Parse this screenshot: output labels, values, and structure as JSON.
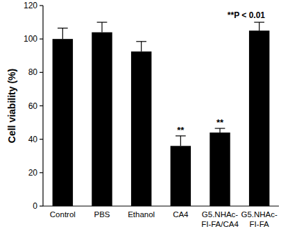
{
  "chart_data": {
    "type": "bar",
    "y_label": "Cell viability (%)",
    "categories": [
      "Control",
      "PBS",
      "Ethanol",
      "CA4",
      "G5.NHAc-\nFI-FA/CA4",
      "G5.NHAc-\nFI-FA"
    ],
    "values": [
      100,
      104,
      92.5,
      36,
      44,
      105
    ],
    "errors": [
      6.5,
      6,
      6,
      6,
      2.5,
      5
    ],
    "color": "#000000",
    "ylim": [
      0,
      120
    ],
    "yticks": [
      0,
      20,
      40,
      60,
      80,
      100,
      120
    ],
    "grid": false,
    "annotations": [
      {
        "text": "**P < 0.01"
      },
      {
        "text": "**",
        "category": "CA4"
      },
      {
        "text": "**",
        "category": "G5.NHAc-\nFI-FA/CA4"
      }
    ]
  }
}
